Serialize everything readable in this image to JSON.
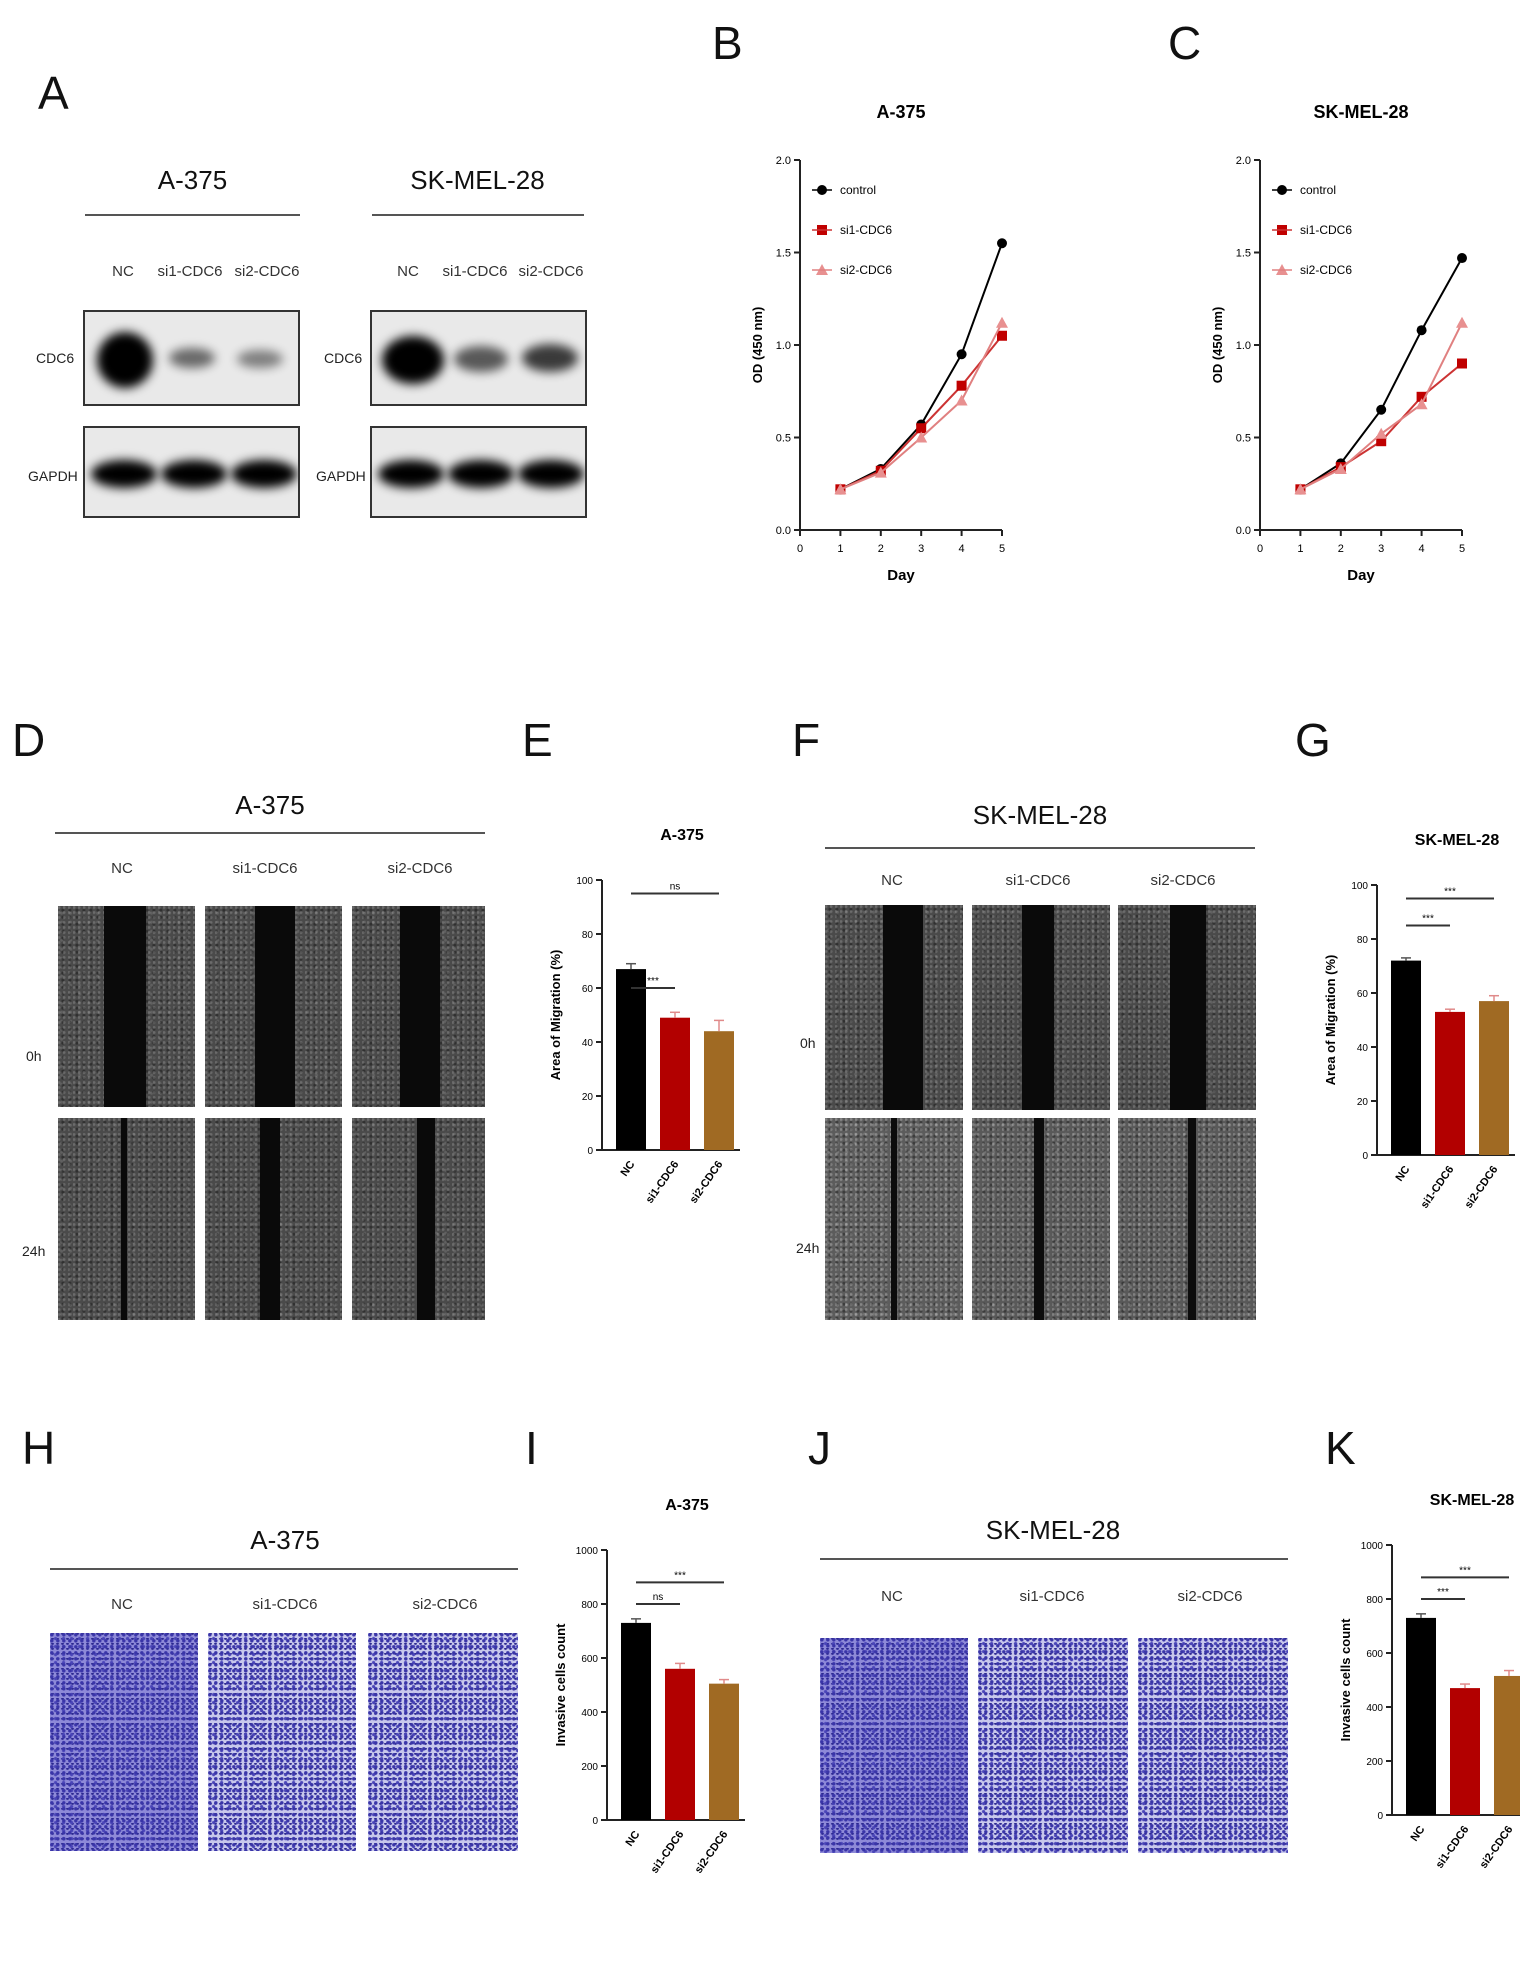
{
  "panels": {
    "A": {
      "letter": "A",
      "lane_labels": [
        "NC",
        "si1-CDC6",
        "si2-CDC6"
      ],
      "blots": [
        {
          "cell_line": "A-375",
          "rows": [
            "CDC6",
            "GAPDH"
          ],
          "cdc6_intensity": [
            1.0,
            0.45,
            0.35
          ]
        },
        {
          "cell_line": "SK-MEL-28",
          "rows": [
            "CDC6",
            "GAPDH"
          ],
          "cdc6_intensity": [
            1.0,
            0.55,
            0.65
          ]
        }
      ]
    },
    "D": {
      "letter": "D",
      "title": "A-375",
      "lanes": [
        "NC",
        "si1-CDC6",
        "si2-CDC6"
      ],
      "rows": [
        "0h",
        "24h"
      ]
    },
    "F": {
      "letter": "F",
      "title": "SK-MEL-28",
      "lanes": [
        "NC",
        "si1-CDC6",
        "si2-CDC6"
      ],
      "rows": [
        "0h",
        "24h"
      ]
    },
    "H": {
      "letter": "H",
      "title": "A-375",
      "lanes": [
        "NC",
        "si1-CDC6",
        "si2-CDC6"
      ]
    },
    "J": {
      "letter": "J",
      "title": "SK-MEL-28",
      "lanes": [
        "NC",
        "si1-CDC6",
        "si2-CDC6"
      ]
    }
  },
  "colors": {
    "control": "#000000",
    "si1": "#b20000",
    "si2": "#a06a23",
    "si2_line": "#e08080"
  },
  "chart_data": [
    {
      "id": "B",
      "letter": "B",
      "type": "line",
      "title": "A-375",
      "xlabel": "Day",
      "ylabel": "OD (450 nm)",
      "x": [
        1,
        2,
        3,
        4,
        5
      ],
      "xlim": [
        0,
        5
      ],
      "ylim": [
        0,
        2.0
      ],
      "xticks": [
        "0",
        "1",
        "2",
        "3",
        "4",
        "5"
      ],
      "yticks": [
        "0.0",
        "0.5",
        "1.0",
        "1.5",
        "2.0"
      ],
      "legend": "top-left",
      "series": [
        {
          "name": "control",
          "values": [
            0.22,
            0.33,
            0.57,
            0.95,
            1.55
          ]
        },
        {
          "name": "si1-CDC6",
          "values": [
            0.22,
            0.32,
            0.55,
            0.78,
            1.05
          ]
        },
        {
          "name": "si2-CDC6",
          "values": [
            0.22,
            0.31,
            0.5,
            0.7,
            1.12
          ]
        }
      ]
    },
    {
      "id": "C",
      "letter": "C",
      "type": "line",
      "title": "SK-MEL-28",
      "xlabel": "Day",
      "ylabel": "OD (450 nm)",
      "x": [
        1,
        2,
        3,
        4,
        5
      ],
      "xlim": [
        0,
        5
      ],
      "ylim": [
        0,
        2.0
      ],
      "xticks": [
        "0",
        "1",
        "2",
        "3",
        "4",
        "5"
      ],
      "yticks": [
        "0.0",
        "0.5",
        "1.0",
        "1.5",
        "2.0"
      ],
      "legend": "top-left",
      "series": [
        {
          "name": "control",
          "values": [
            0.22,
            0.36,
            0.65,
            1.08,
            1.47
          ]
        },
        {
          "name": "si1-CDC6",
          "values": [
            0.22,
            0.34,
            0.48,
            0.72,
            0.9
          ]
        },
        {
          "name": "si2-CDC6",
          "values": [
            0.22,
            0.33,
            0.52,
            0.68,
            1.12
          ]
        }
      ]
    },
    {
      "id": "E",
      "letter": "E",
      "type": "bar",
      "title": "A-375",
      "ylabel": "Area of Migration (%)",
      "categories": [
        "NC",
        "si1-CDC6",
        "si2-CDC6"
      ],
      "values": [
        67,
        49,
        44
      ],
      "errors": [
        2,
        2,
        4
      ],
      "ylim": [
        0,
        100
      ],
      "yticks": [
        "0",
        "20",
        "40",
        "60",
        "80",
        "100"
      ],
      "significance": [
        {
          "from": 0,
          "to": 1,
          "label": "***",
          "level": 60
        },
        {
          "from": 0,
          "to": 2,
          "label": "ns",
          "level": 95
        }
      ]
    },
    {
      "id": "G",
      "letter": "G",
      "type": "bar",
      "title": "SK-MEL-28",
      "ylabel": "Area of Migration (%)",
      "categories": [
        "NC",
        "si1-CDC6",
        "si2-CDC6"
      ],
      "values": [
        72,
        53,
        57
      ],
      "errors": [
        1,
        1,
        2
      ],
      "ylim": [
        0,
        100
      ],
      "yticks": [
        "0",
        "20",
        "40",
        "60",
        "80",
        "100"
      ],
      "significance": [
        {
          "from": 0,
          "to": 1,
          "label": "***",
          "level": 85
        },
        {
          "from": 0,
          "to": 2,
          "label": "***",
          "level": 95
        }
      ]
    },
    {
      "id": "I",
      "letter": "I",
      "type": "bar",
      "title": "A-375",
      "ylabel": "Invasive cells count",
      "categories": [
        "NC",
        "si1-CDC6",
        "si2-CDC6"
      ],
      "values": [
        730,
        560,
        505
      ],
      "errors": [
        15,
        20,
        15
      ],
      "ylim": [
        0,
        1000
      ],
      "yticks": [
        "0",
        "200",
        "400",
        "600",
        "800",
        "1000"
      ],
      "significance": [
        {
          "from": 0,
          "to": 1,
          "label": "ns",
          "level": 800
        },
        {
          "from": 0,
          "to": 2,
          "label": "***",
          "level": 880
        }
      ]
    },
    {
      "id": "K",
      "letter": "K",
      "type": "bar",
      "title": "SK-MEL-28",
      "ylabel": "Invasive cells count",
      "categories": [
        "NC",
        "si1-CDC6",
        "si2-CDC6"
      ],
      "values": [
        730,
        470,
        515
      ],
      "errors": [
        15,
        15,
        20
      ],
      "ylim": [
        0,
        1000
      ],
      "yticks": [
        "0",
        "200",
        "400",
        "600",
        "800",
        "1000"
      ],
      "significance": [
        {
          "from": 0,
          "to": 1,
          "label": "***",
          "level": 800
        },
        {
          "from": 0,
          "to": 2,
          "label": "***",
          "level": 880
        }
      ]
    }
  ]
}
